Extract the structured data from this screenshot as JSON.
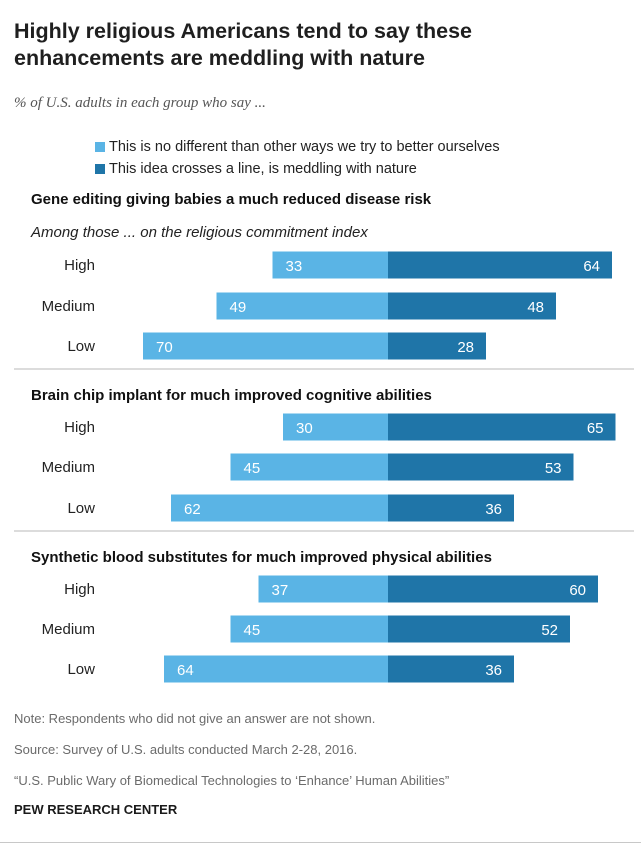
{
  "title": "Highly religious Americans tend to say these enhancements are meddling with nature",
  "subtitle": "% of U.S. adults in each group who say ...",
  "legend": [
    {
      "label": "This is no different than other ways we try to better ourselves",
      "color": "#5ab4e5"
    },
    {
      "label": "This idea crosses a line, is meddling with nature",
      "color": "#1f75a8"
    }
  ],
  "chart_data": [
    {
      "type": "bar",
      "title": "Gene editing giving babies a much reduced disease risk",
      "subtitle": "Among those ... on the religious commitment index",
      "categories": [
        "High",
        "Medium",
        "Low"
      ],
      "series": [
        {
          "name": "This is no different than other ways we try to better ourselves",
          "values": [
            33,
            49,
            70
          ]
        },
        {
          "name": "This idea crosses a line, is meddling with nature",
          "values": [
            64,
            48,
            28
          ]
        }
      ]
    },
    {
      "type": "bar",
      "title": "Brain chip implant for much improved cognitive abilities",
      "categories": [
        "High",
        "Medium",
        "Low"
      ],
      "series": [
        {
          "name": "This is no different than other ways we try to better ourselves",
          "values": [
            30,
            45,
            62
          ]
        },
        {
          "name": "This idea crosses a line, is meddling with nature",
          "values": [
            65,
            53,
            36
          ]
        }
      ]
    },
    {
      "type": "bar",
      "title": "Synthetic blood substitutes for much improved physical abilities",
      "categories": [
        "High",
        "Medium",
        "Low"
      ],
      "series": [
        {
          "name": "This is no different than other ways we try to better ourselves",
          "values": [
            37,
            45,
            64
          ]
        },
        {
          "name": "This idea crosses a line, is meddling with nature",
          "values": [
            60,
            52,
            36
          ]
        }
      ]
    }
  ],
  "footer": {
    "note": "Note: Respondents who did not give an answer are not shown.",
    "source": "Source: Survey of U.S. adults conducted March 2-28, 2016.",
    "report": "“U.S. Public Wary of Biomedical Technologies to ‘Enhance’ Human Abilities”",
    "brand": "PEW RESEARCH CENTER"
  }
}
